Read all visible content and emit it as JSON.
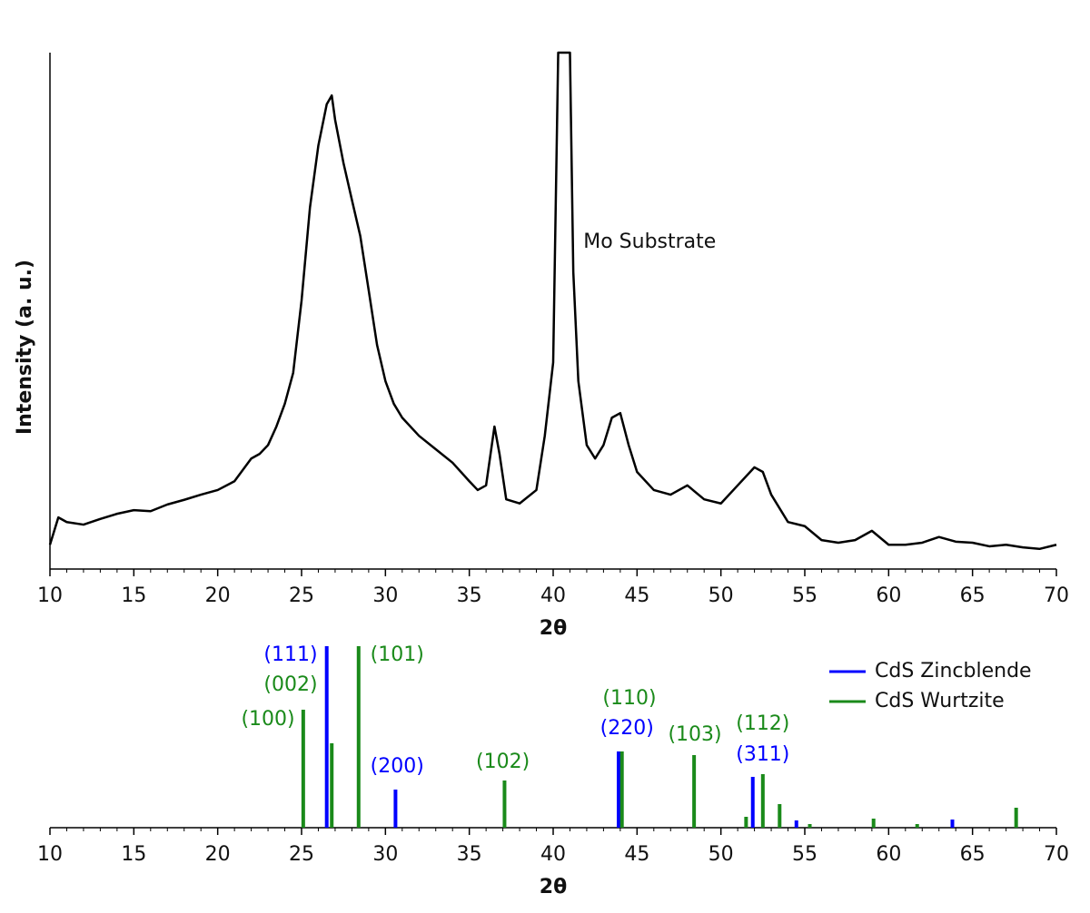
{
  "chart_data": [
    {
      "type": "line",
      "ylabel": "Intensity (a. u.)",
      "xlabel": "2θ",
      "xlim": [
        10,
        70
      ],
      "ylim": [
        0,
        100
      ],
      "xticks": [
        10,
        15,
        20,
        25,
        30,
        35,
        40,
        45,
        50,
        55,
        60,
        65,
        70
      ],
      "xticks_minor": [
        11,
        12,
        13,
        14,
        16,
        17,
        18,
        19,
        21,
        22,
        23,
        24,
        26,
        27,
        28,
        29,
        31,
        32,
        33,
        34,
        36,
        37,
        38,
        39,
        41,
        42,
        43,
        44,
        46,
        47,
        48,
        49,
        51,
        52,
        53,
        54,
        56,
        57,
        58,
        59,
        61,
        62,
        63,
        64,
        66,
        67,
        68,
        69
      ],
      "series": [
        {
          "color": "#000000",
          "x": [
            10,
            10.5,
            11,
            12,
            13,
            14,
            15,
            16,
            17,
            18,
            19,
            20,
            21,
            22,
            22.5,
            23,
            23.5,
            24,
            24.5,
            25,
            25.5,
            26,
            26.5,
            26.8,
            27,
            27.5,
            28,
            28.5,
            29,
            29.5,
            30,
            30.5,
            31,
            32,
            33,
            34,
            35,
            35.5,
            36,
            36.5,
            36.8,
            37.2,
            38,
            39,
            39.5,
            40,
            40.3,
            41,
            41.2,
            41.5,
            42,
            42.5,
            43,
            43.5,
            44,
            44.5,
            45,
            46,
            47,
            48,
            49,
            50,
            51,
            52,
            52.5,
            53,
            54,
            55,
            56,
            57,
            58,
            59,
            60,
            61,
            62,
            63,
            64,
            65,
            66,
            67,
            68,
            69,
            70
          ],
          "values": [
            4.7,
            10,
            9.1,
            8.6,
            9.7,
            10.7,
            11.4,
            11.2,
            12.5,
            13.4,
            14.4,
            15.3,
            17,
            21.4,
            22.3,
            24,
            27.6,
            32,
            38,
            52,
            70,
            82,
            90,
            91.7,
            87,
            78.6,
            71.5,
            64.5,
            54,
            43.4,
            36.4,
            32,
            29.3,
            25.8,
            23.2,
            20.6,
            17,
            15.3,
            16.2,
            27.6,
            22.3,
            13.5,
            12.7,
            15.3,
            25.8,
            40,
            100,
            100,
            57.5,
            36.4,
            24,
            21.4,
            24,
            29.3,
            30.2,
            24,
            18.8,
            15.3,
            14.4,
            16.2,
            13.5,
            12.7,
            16.2,
            19.7,
            18.8,
            14.4,
            9.1,
            8.3,
            5.6,
            5.1,
            5.6,
            7.4,
            4.7,
            4.7,
            5.1,
            6.2,
            5.3,
            5.1,
            4.4,
            4.7,
            4.2,
            3.9,
            4.7
          ]
        }
      ],
      "annotations": [
        {
          "text": "Mo Substrate",
          "x": 41.8,
          "y": 63.3
        }
      ]
    },
    {
      "type": "stem",
      "xlabel": "2θ",
      "xlim": [
        10,
        70
      ],
      "ylim": [
        0,
        100
      ],
      "xticks": [
        10,
        15,
        20,
        25,
        30,
        35,
        40,
        45,
        50,
        55,
        60,
        65,
        70
      ],
      "xticks_minor": [
        11,
        12,
        13,
        14,
        16,
        17,
        18,
        19,
        21,
        22,
        23,
        24,
        26,
        27,
        28,
        29,
        31,
        32,
        33,
        34,
        36,
        37,
        38,
        39,
        41,
        42,
        43,
        44,
        46,
        47,
        48,
        49,
        51,
        52,
        53,
        54,
        56,
        57,
        58,
        59,
        61,
        62,
        63,
        64,
        66,
        67,
        68,
        69
      ],
      "legend": "upper right",
      "series": [
        {
          "name": "CdS Zincblende",
          "color": "#0000ff",
          "x": [
            26.5,
            30.6,
            43.9,
            51.9,
            54.5,
            63.8
          ],
          "values": [
            100,
            21,
            42,
            28,
            4,
            4.5
          ]
        },
        {
          "name": "CdS Wurtzite",
          "color": "#1a8a1a",
          "x": [
            25.1,
            26.8,
            28.4,
            37.1,
            44.1,
            48.4,
            51.5,
            52.5,
            53.5,
            55.3,
            59.1,
            61.7,
            67.6
          ],
          "values": [
            65,
            46.5,
            100,
            26,
            42,
            40,
            6,
            29.5,
            13,
            2,
            5,
            2,
            11
          ]
        }
      ],
      "annotations": [
        {
          "text": "(111)",
          "x": 24.35,
          "y": 95,
          "color": "#0000ff"
        },
        {
          "text": "(002)",
          "x": 24.35,
          "y": 78.5,
          "color": "#1a8a1a"
        },
        {
          "text": "(100)",
          "x": 23.0,
          "y": 59.5,
          "color": "#1a8a1a"
        },
        {
          "text": "(101)",
          "x": 30.7,
          "y": 95,
          "color": "#1a8a1a"
        },
        {
          "text": "(200)",
          "x": 30.7,
          "y": 33.5,
          "color": "#0000ff"
        },
        {
          "text": "(102)",
          "x": 37.0,
          "y": 36,
          "color": "#1a8a1a"
        },
        {
          "text": "(110)",
          "x": 44.55,
          "y": 71,
          "color": "#1a8a1a"
        },
        {
          "text": "(220)",
          "x": 44.4,
          "y": 54.5,
          "color": "#0000ff"
        },
        {
          "text": "(103)",
          "x": 48.45,
          "y": 51,
          "color": "#1a8a1a"
        },
        {
          "text": "(112)",
          "x": 52.5,
          "y": 57,
          "color": "#1a8a1a"
        },
        {
          "text": "(311)",
          "x": 52.5,
          "y": 40,
          "color": "#0000ff"
        }
      ]
    }
  ]
}
